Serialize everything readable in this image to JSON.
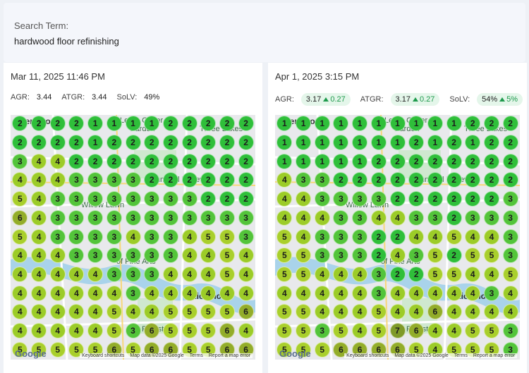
{
  "search": {
    "label": "Search Term:",
    "value": "hardwood floor refinishing"
  },
  "panels": [
    {
      "date": "Mar 11, 2025 11:46 PM",
      "metrics": [
        {
          "label": "AGR:",
          "value": "3.44"
        },
        {
          "label": "ATGR:",
          "value": "3.44"
        },
        {
          "label": "SoLV:",
          "value": "49%"
        }
      ],
      "grid": [
        [
          2,
          2,
          2,
          2,
          1,
          1,
          1,
          1,
          2,
          2,
          2,
          2,
          2
        ],
        [
          2,
          2,
          2,
          2,
          1,
          2,
          2,
          2,
          2,
          2,
          2,
          2,
          2
        ],
        [
          3,
          4,
          4,
          2,
          2,
          2,
          2,
          2,
          2,
          2,
          2,
          2,
          2
        ],
        [
          4,
          4,
          4,
          3,
          3,
          3,
          3,
          2,
          2,
          2,
          2,
          2,
          2
        ],
        [
          5,
          4,
          3,
          3,
          3,
          3,
          3,
          3,
          3,
          3,
          2,
          2,
          2
        ],
        [
          6,
          4,
          3,
          3,
          3,
          3,
          3,
          3,
          3,
          3,
          3,
          3,
          3
        ],
        [
          5,
          4,
          3,
          3,
          3,
          3,
          4,
          3,
          3,
          4,
          5,
          5,
          3
        ],
        [
          4,
          4,
          4,
          3,
          3,
          3,
          3,
          3,
          3,
          4,
          4,
          5,
          4
        ],
        [
          4,
          4,
          4,
          4,
          4,
          3,
          3,
          3,
          4,
          4,
          4,
          5,
          4
        ],
        [
          4,
          4,
          4,
          4,
          4,
          4,
          3,
          4,
          4,
          4,
          4,
          4,
          4
        ],
        [
          4,
          4,
          4,
          4,
          4,
          5,
          4,
          4,
          5,
          5,
          5,
          5,
          6
        ],
        [
          4,
          4,
          4,
          4,
          4,
          5,
          3,
          6,
          5,
          5,
          5,
          6,
          4
        ],
        [
          5,
          5,
          5,
          5,
          5,
          6,
          5,
          6,
          6,
          5,
          5,
          6,
          6
        ]
      ]
    },
    {
      "date": "Apr 1, 2025 3:15 PM",
      "metrics": [
        {
          "label": "AGR:",
          "value": "3.17",
          "change": "0.27"
        },
        {
          "label": "ATGR:",
          "value": "3.17",
          "change": "0.27"
        },
        {
          "label": "SoLV:",
          "value": "54%",
          "change": "5%"
        }
      ],
      "grid": [
        [
          1,
          1,
          1,
          1,
          1,
          1,
          1,
          1,
          1,
          1,
          2,
          2,
          2
        ],
        [
          1,
          1,
          1,
          1,
          1,
          1,
          1,
          2,
          1,
          2,
          1,
          2,
          2
        ],
        [
          1,
          1,
          1,
          1,
          1,
          2,
          2,
          2,
          2,
          2,
          2,
          2,
          2
        ],
        [
          4,
          3,
          3,
          2,
          2,
          2,
          2,
          2,
          2,
          2,
          2,
          2,
          2
        ],
        [
          4,
          4,
          3,
          3,
          3,
          3,
          2,
          2,
          2,
          2,
          2,
          2,
          3
        ],
        [
          4,
          4,
          4,
          3,
          3,
          4,
          4,
          3,
          3,
          2,
          3,
          3,
          3
        ],
        [
          5,
          4,
          3,
          3,
          3,
          2,
          2,
          4,
          4,
          5,
          4,
          4,
          3
        ],
        [
          5,
          5,
          3,
          3,
          3,
          2,
          4,
          3,
          5,
          2,
          5,
          5,
          3
        ],
        [
          5,
          5,
          4,
          4,
          4,
          3,
          2,
          2,
          5,
          5,
          4,
          4,
          5
        ],
        [
          4,
          4,
          4,
          4,
          4,
          3,
          4,
          4,
          4,
          4,
          4,
          3,
          4
        ],
        [
          5,
          5,
          4,
          4,
          4,
          5,
          4,
          4,
          6,
          4,
          4,
          4,
          4
        ],
        [
          5,
          5,
          3,
          5,
          4,
          5,
          7,
          6,
          4,
          4,
          5,
          5,
          3
        ],
        [
          5,
          5,
          5,
          6,
          6,
          6,
          6,
          5,
          4,
          5,
          5,
          5,
          3
        ]
      ]
    }
  ],
  "map_labels": [
    "Henrico",
    "Lewis Ginter",
    "Garden",
    "Three Lakes",
    "Richmond Raceway",
    "Willow Lawn",
    "of Fine Arts",
    "Richmond",
    "Forest"
  ],
  "map_footer": {
    "logo": "Google",
    "links": [
      "Keyboard shortcuts",
      "Map data ©2025 Google",
      "Terms",
      "Report a map error"
    ]
  }
}
